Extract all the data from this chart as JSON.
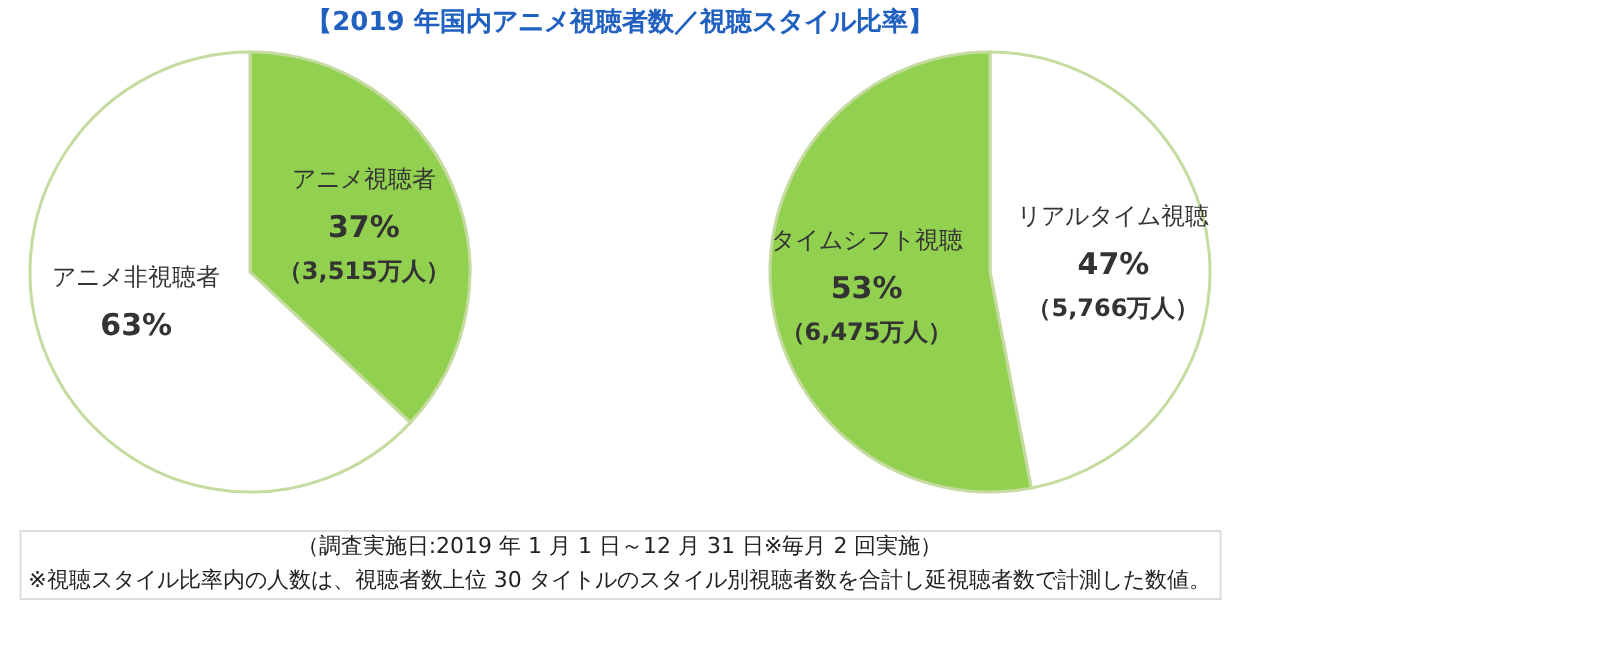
{
  "chart_data": [
    {
      "type": "pie",
      "title": "【2019 年国内アニメ視聴者数／視聴スタイル比率】",
      "categories": [
        "アニメ視聴者",
        "アニメ非視聴者"
      ],
      "values": [
        37,
        63
      ],
      "colors": [
        "#92d050",
        "#ffffff"
      ],
      "value_labels": [
        "37%\n（3,515万人）",
        "63%"
      ],
      "legend": false
    },
    {
      "type": "pie",
      "categories": [
        "リアルタイム視聴",
        "タイムシフト視聴"
      ],
      "values": [
        47,
        53
      ],
      "colors": [
        "#ffffff",
        "#92d050"
      ],
      "value_labels": [
        "47%\n（5,766万人）",
        "53%\n（6,475万人）"
      ],
      "legend": false,
      "annotations": [
        "（調査実施日:2019 年 1 月 1 日～12 月 31 日※毎月 2 回実施）",
        "※視聴スタイル比率内の人数は、視聴者数上位 30 タイトルのスタイル別視聴者数を合計し延視聴者数で計測した数値。"
      ]
    }
  ]
}
